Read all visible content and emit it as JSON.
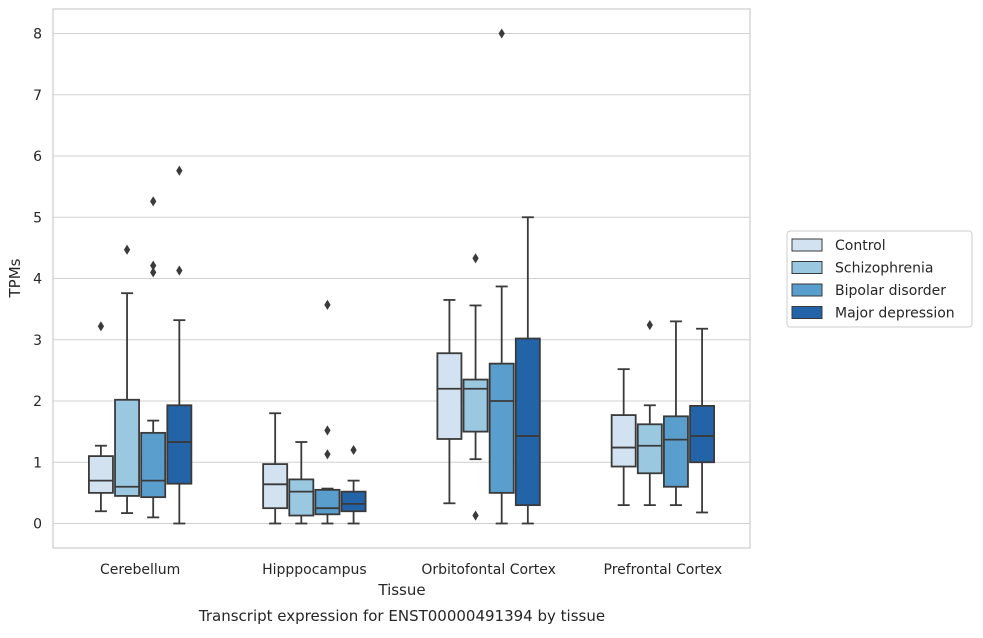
{
  "chart_data": {
    "type": "box",
    "title": "",
    "caption": "Transcript expression for ENST00000491394 by tissue",
    "xlabel": "Tissue",
    "ylabel": "TPMs",
    "ylim": [
      -0.4,
      8.4
    ],
    "yticks": [
      0,
      1,
      2,
      3,
      4,
      5,
      6,
      7,
      8
    ],
    "grid": "horizontal",
    "legend_position": "right-center",
    "categories": [
      "Cerebellum",
      "Hipppocampus",
      "Orbitofontal Cortex",
      "Prefrontal Cortex"
    ],
    "series": [
      {
        "name": "Control",
        "color": "#d2e2f1",
        "boxes": [
          {
            "whislo": 0.2,
            "q1": 0.5,
            "med": 0.7,
            "q3": 1.1,
            "whishi": 1.27,
            "fliers": [
              3.22
            ]
          },
          {
            "whislo": 0.0,
            "q1": 0.25,
            "med": 0.64,
            "q3": 0.97,
            "whishi": 1.8,
            "fliers": []
          },
          {
            "whislo": 0.33,
            "q1": 1.38,
            "med": 2.2,
            "q3": 2.78,
            "whishi": 3.65,
            "fliers": []
          },
          {
            "whislo": 0.3,
            "q1": 0.93,
            "med": 1.24,
            "q3": 1.77,
            "whishi": 2.52,
            "fliers": []
          }
        ]
      },
      {
        "name": "Schizophrenia",
        "color": "#9ac8e0",
        "boxes": [
          {
            "whislo": 0.17,
            "q1": 0.45,
            "med": 0.6,
            "q3": 2.02,
            "whishi": 3.76,
            "fliers": [
              4.47
            ]
          },
          {
            "whislo": 0.0,
            "q1": 0.13,
            "med": 0.52,
            "q3": 0.72,
            "whishi": 1.33,
            "fliers": []
          },
          {
            "whislo": 1.05,
            "q1": 1.5,
            "med": 2.2,
            "q3": 2.35,
            "whishi": 3.56,
            "fliers": [
              4.33,
              0.13
            ]
          },
          {
            "whislo": 0.3,
            "q1": 0.82,
            "med": 1.27,
            "q3": 1.62,
            "whishi": 1.93,
            "fliers": [
              3.24
            ]
          }
        ]
      },
      {
        "name": "Bipolar disorder",
        "color": "#5a9ecd",
        "boxes": [
          {
            "whislo": 0.1,
            "q1": 0.43,
            "med": 0.7,
            "q3": 1.48,
            "whishi": 1.68,
            "fliers": [
              5.26,
              4.21,
              4.1
            ]
          },
          {
            "whislo": 0.0,
            "q1": 0.15,
            "med": 0.25,
            "q3": 0.55,
            "whishi": 0.57,
            "fliers": [
              3.57,
              1.52,
              1.13
            ]
          },
          {
            "whislo": 0.0,
            "q1": 0.5,
            "med": 2.0,
            "q3": 2.61,
            "whishi": 3.87,
            "fliers": [
              8.0
            ]
          },
          {
            "whislo": 0.3,
            "q1": 0.6,
            "med": 1.37,
            "q3": 1.75,
            "whishi": 3.3,
            "fliers": []
          }
        ]
      },
      {
        "name": "Major depression",
        "color": "#2363a8",
        "boxes": [
          {
            "whislo": 0.0,
            "q1": 0.65,
            "med": 1.33,
            "q3": 1.93,
            "whishi": 3.32,
            "fliers": [
              5.76,
              4.13
            ]
          },
          {
            "whislo": 0.0,
            "q1": 0.2,
            "med": 0.32,
            "q3": 0.52,
            "whishi": 0.7,
            "fliers": [
              1.2
            ]
          },
          {
            "whislo": 0.0,
            "q1": 0.3,
            "med": 1.43,
            "q3": 3.02,
            "whishi": 5.0,
            "fliers": []
          },
          {
            "whislo": 0.18,
            "q1": 1.0,
            "med": 1.43,
            "q3": 1.92,
            "whishi": 3.18,
            "fliers": []
          }
        ]
      }
    ]
  }
}
